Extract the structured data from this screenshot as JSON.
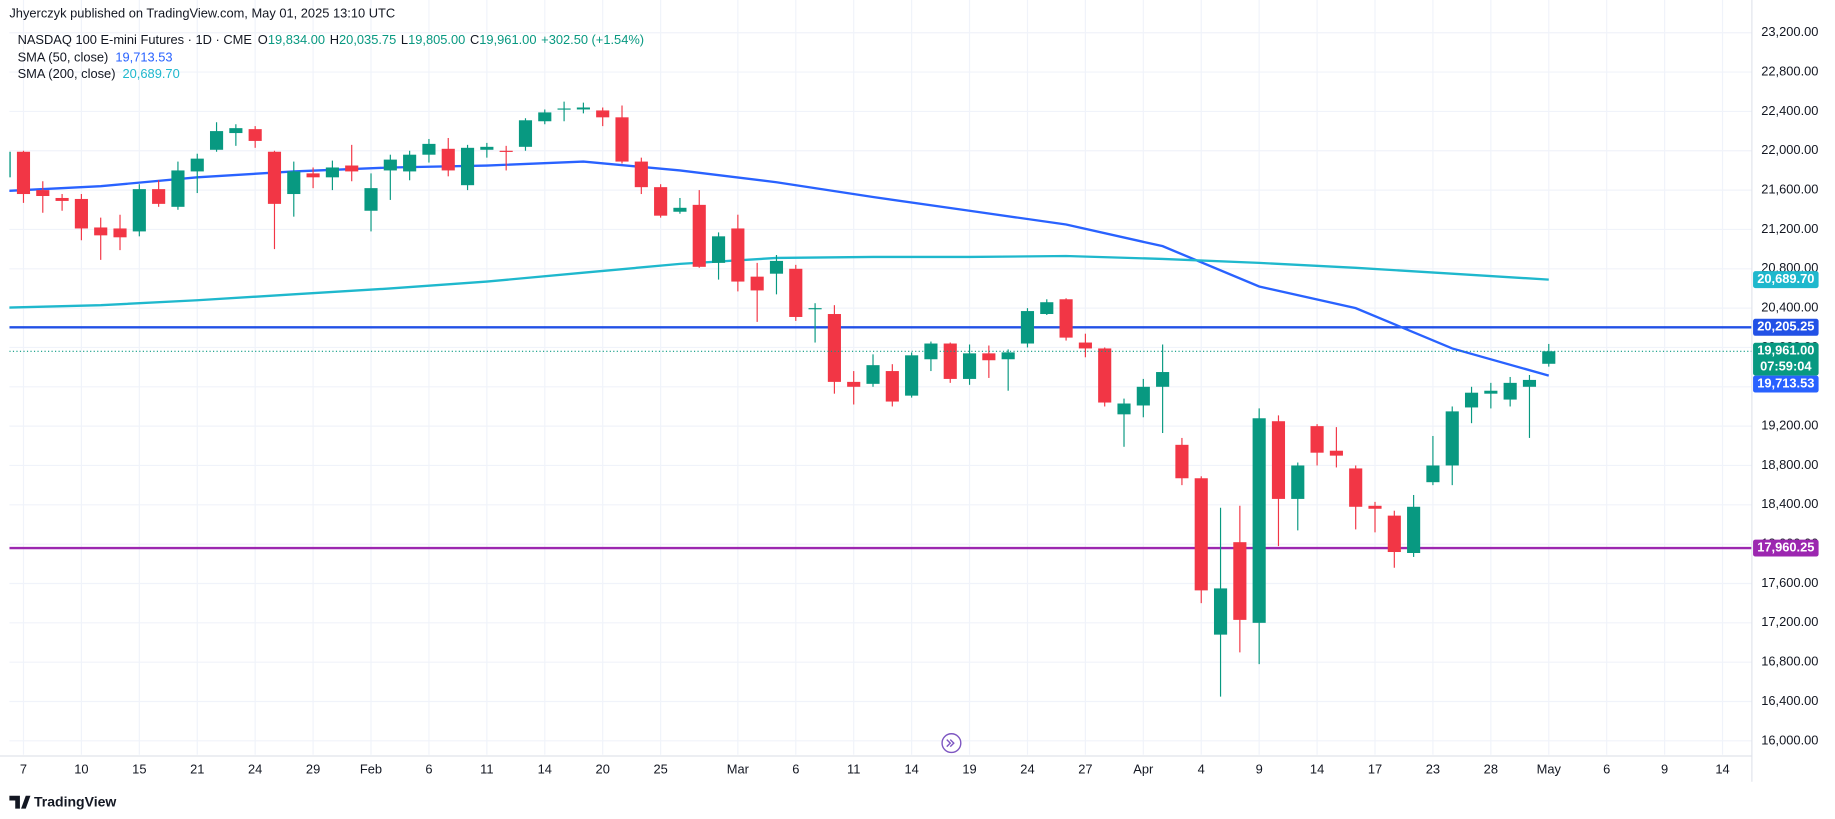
{
  "chart_data": {
    "type": "candlestick",
    "header": "Jhyerczyk published on TradingView.com, May 01, 2025 13:10 UTC",
    "title": "NASDAQ 100 E-mini Futures · 1D · CME",
    "ohlc_legend": [
      {
        "key": "O",
        "label": "19,834.00"
      },
      {
        "key": "H",
        "label": "20,035.75"
      },
      {
        "key": "L",
        "label": "19,805.00"
      },
      {
        "key": "C",
        "label": "19,961.00"
      }
    ],
    "change_label": "+302.50",
    "change_pct_label": "(+1.54%)",
    "up_color": "#089981",
    "down_color": "#f23645",
    "x": [
      0,
      1,
      2,
      3,
      4,
      5,
      6,
      7,
      8,
      9,
      10,
      11,
      12,
      13,
      14,
      15,
      16,
      17,
      18,
      19,
      20,
      21,
      22,
      23,
      24,
      25,
      26,
      27,
      28,
      29,
      30,
      31,
      32,
      33,
      34,
      35,
      36,
      37,
      38,
      39,
      40,
      41,
      42,
      43,
      44,
      45,
      46,
      47,
      48,
      49,
      50,
      51,
      52,
      53,
      54,
      55,
      56,
      57,
      58,
      59,
      60,
      61,
      62,
      63,
      64,
      65,
      66,
      67,
      68,
      69,
      70,
      71,
      72,
      73,
      74,
      75,
      76,
      77,
      78,
      79,
      80
    ],
    "open": [
      21730,
      21990,
      21600,
      21520,
      21510,
      21220,
      21210,
      21180,
      21610,
      21430,
      21790,
      22010,
      22180,
      22220,
      21990,
      21560,
      21770,
      21730,
      21850,
      21390,
      21800,
      21790,
      21960,
      22020,
      21650,
      22010,
      22000,
      22040,
      22300,
      22420,
      22420,
      22410,
      22340,
      21890,
      21630,
      21380,
      21450,
      20860,
      21210,
      20720,
      20750,
      20800,
      20390,
      20340,
      19650,
      19630,
      19760,
      19510,
      19880,
      20040,
      19680,
      19940,
      19880,
      20040,
      20340,
      20490,
      20050,
      19990,
      19320,
      19410,
      19600,
      19010,
      18670,
      17080,
      18020,
      17200,
      19250,
      18460,
      19200,
      18950,
      18770,
      18390,
      18290,
      17910,
      18630,
      18800,
      19390,
      19530,
      19470,
      19600,
      19834
    ],
    "high": [
      22000,
      22000,
      21690,
      21560,
      21560,
      21320,
      21350,
      21660,
      21700,
      21890,
      21970,
      22290,
      22270,
      22250,
      22000,
      21890,
      21830,
      21900,
      22060,
      21770,
      21960,
      22000,
      22120,
      22130,
      22060,
      22080,
      22050,
      22330,
      22420,
      22500,
      22490,
      22440,
      22460,
      21930,
      21660,
      21520,
      21600,
      21170,
      21350,
      20860,
      20940,
      20840,
      20450,
      20430,
      19760,
      19930,
      19830,
      19950,
      20060,
      20050,
      20030,
      20020,
      19980,
      20400,
      20490,
      20500,
      20140,
      20000,
      19480,
      19680,
      20030,
      19080,
      18690,
      18370,
      18390,
      19380,
      19310,
      18830,
      19220,
      19190,
      18800,
      18430,
      18340,
      18500,
      19100,
      19400,
      19600,
      19640,
      19700,
      19720,
      20035.75
    ],
    "low": [
      21700,
      21470,
      21370,
      21390,
      21090,
      20890,
      20990,
      21130,
      21430,
      21400,
      21570,
      21990,
      22050,
      22030,
      21000,
      21330,
      21620,
      21600,
      21690,
      21180,
      21500,
      21700,
      21880,
      21740,
      21600,
      21930,
      21800,
      22000,
      22270,
      22300,
      22380,
      22250,
      21870,
      21560,
      21320,
      21360,
      20810,
      20690,
      20570,
      20260,
      20540,
      20270,
      20050,
      19530,
      19420,
      19600,
      19400,
      19490,
      19760,
      19640,
      19620,
      19690,
      19560,
      20000,
      20330,
      20070,
      19900,
      19400,
      18990,
      19290,
      19130,
      18600,
      17400,
      16450,
      16900,
      16780,
      17980,
      18140,
      18800,
      18780,
      18150,
      18120,
      17760,
      17870,
      18600,
      18600,
      19230,
      19380,
      19400,
      19080,
      19805
    ],
    "close": [
      21990,
      21560,
      21540,
      21490,
      21210,
      21140,
      21120,
      21610,
      21460,
      21800,
      21920,
      22200,
      22230,
      22100,
      21460,
      21790,
      21730,
      21830,
      21790,
      21620,
      21910,
      21960,
      22070,
      21800,
      22030,
      22040,
      21990,
      22310,
      22390,
      22430,
      22440,
      22340,
      21890,
      21630,
      21340,
      21420,
      20820,
      21130,
      20670,
      20580,
      20880,
      20310,
      20400,
      19650,
      19600,
      19820,
      19450,
      19920,
      20040,
      19680,
      19940,
      19870,
      19950,
      20370,
      20460,
      20100,
      19990,
      19440,
      19430,
      19600,
      19750,
      18670,
      17530,
      17550,
      17230,
      19280,
      18460,
      18800,
      18930,
      18900,
      18380,
      18360,
      17920,
      18380,
      18800,
      19350,
      19540,
      19560,
      19640,
      19670,
      19961
    ],
    "last_price_label": "19,961.00",
    "countdown": "07:59:04",
    "indicators": [
      {
        "name": "SMA (50, close)",
        "color": "#2962ff",
        "last_label": "19,713.53",
        "x": [
          0,
          5,
          10,
          15,
          20,
          25,
          30,
          35,
          40,
          45,
          50,
          55,
          60,
          65,
          70,
          75,
          80
        ],
        "values": [
          21590,
          21640,
          21730,
          21790,
          21830,
          21850,
          21890,
          21800,
          21680,
          21530,
          21390,
          21250,
          21030,
          20620,
          20400,
          19990,
          19713.53
        ]
      },
      {
        "name": "SMA (200, close)",
        "color": "#1fb8cd",
        "last_label": "20,689.70",
        "x": [
          0,
          5,
          10,
          15,
          20,
          25,
          30,
          35,
          40,
          45,
          50,
          55,
          60,
          65,
          70,
          75,
          80
        ],
        "values": [
          20404,
          20430,
          20480,
          20540,
          20600,
          20670,
          20760,
          20850,
          20910,
          20920,
          20920,
          20930,
          20900,
          20860,
          20810,
          20750,
          20689.7
        ]
      }
    ],
    "hlines": [
      {
        "value": 20205.25,
        "label": "20,205.25",
        "color": "#2251e6"
      },
      {
        "value": 17960.25,
        "label": "17,960.25",
        "color": "#9c27b0"
      }
    ],
    "xlim": [
      0.27,
      90.52
    ],
    "xticks": [
      {
        "value": 1,
        "label": "7"
      },
      {
        "value": 4,
        "label": "10"
      },
      {
        "value": 7,
        "label": "15"
      },
      {
        "value": 10,
        "label": "21"
      },
      {
        "value": 13,
        "label": "24"
      },
      {
        "value": 16,
        "label": "29"
      },
      {
        "value": 19,
        "label": "Feb"
      },
      {
        "value": 22,
        "label": "6"
      },
      {
        "value": 25,
        "label": "11"
      },
      {
        "value": 28,
        "label": "14"
      },
      {
        "value": 31,
        "label": "20"
      },
      {
        "value": 34,
        "label": "25"
      },
      {
        "value": 38,
        "label": "Mar"
      },
      {
        "value": 41,
        "label": "6"
      },
      {
        "value": 44,
        "label": "11"
      },
      {
        "value": 47,
        "label": "14"
      },
      {
        "value": 50,
        "label": "19"
      },
      {
        "value": 53,
        "label": "24"
      },
      {
        "value": 56,
        "label": "27"
      },
      {
        "value": 59,
        "label": "Apr"
      },
      {
        "value": 62,
        "label": "4"
      },
      {
        "value": 65,
        "label": "9"
      },
      {
        "value": 68,
        "label": "14"
      },
      {
        "value": 71,
        "label": "17"
      },
      {
        "value": 74,
        "label": "23"
      },
      {
        "value": 77,
        "label": "28"
      },
      {
        "value": 80,
        "label": "May"
      },
      {
        "value": 83,
        "label": "6"
      },
      {
        "value": 86,
        "label": "9"
      },
      {
        "value": 89,
        "label": "14"
      }
    ],
    "ylim": [
      15858,
      23295
    ],
    "yticks": [
      {
        "value": 16000,
        "label": "16,000.00"
      },
      {
        "value": 16400,
        "label": "16,400.00"
      },
      {
        "value": 16800,
        "label": "16,800.00"
      },
      {
        "value": 17200,
        "label": "17,200.00"
      },
      {
        "value": 17600,
        "label": "17,600.00"
      },
      {
        "value": 18000,
        "label": "18,000.00"
      },
      {
        "value": 18400,
        "label": "18,400.00"
      },
      {
        "value": 18800,
        "label": "18,800.00"
      },
      {
        "value": 19200,
        "label": "19,200.00"
      },
      {
        "value": 19600,
        "label": "19,600.00"
      },
      {
        "value": 20000,
        "label": "20,000.00"
      },
      {
        "value": 20400,
        "label": "20,400.00"
      },
      {
        "value": 20800,
        "label": "20,800.00"
      },
      {
        "value": 21200,
        "label": "21,200.00"
      },
      {
        "value": 21600,
        "label": "21,600.00"
      },
      {
        "value": 22000,
        "label": "22,000.00"
      },
      {
        "value": 22400,
        "label": "22,400.00"
      },
      {
        "value": 22800,
        "label": "22,800.00"
      },
      {
        "value": 23200,
        "label": "23,200.00"
      }
    ],
    "grid": true,
    "footer": "TradingView"
  }
}
